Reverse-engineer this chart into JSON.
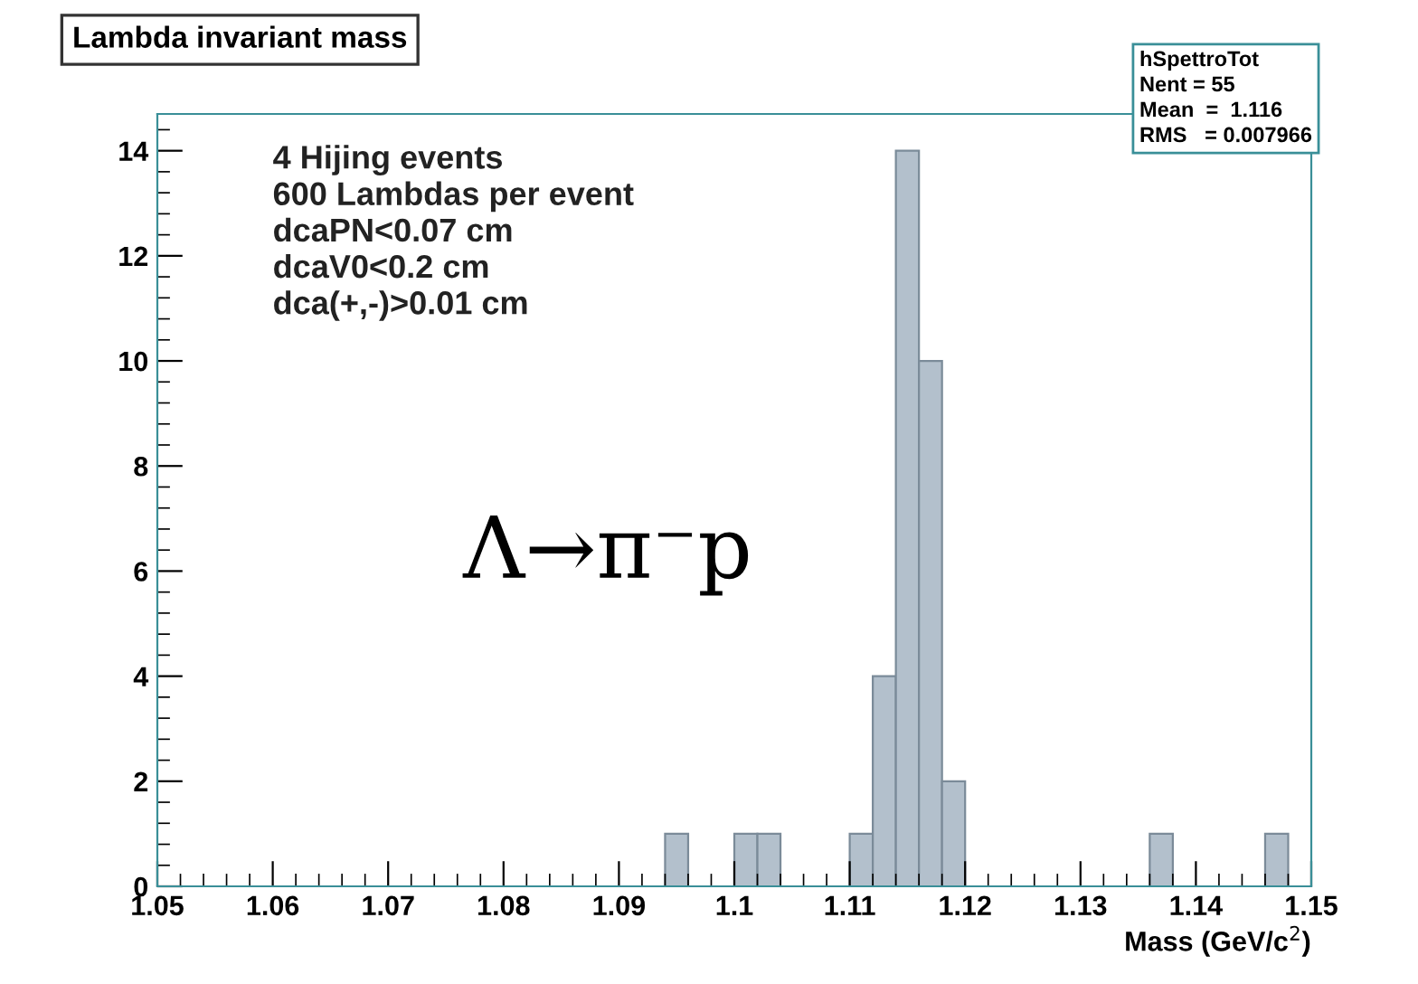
{
  "chart_data": {
    "type": "histogram",
    "title": "Lambda invariant mass",
    "xlabel": "Mass (GeV/c$^{2}$)",
    "bins": [
      1.094,
      1.096,
      1.098,
      1.1,
      1.102,
      1.104,
      1.106,
      1.108,
      1.11,
      1.112,
      1.114,
      1.116,
      1.118,
      1.12,
      1.122,
      1.124,
      1.126,
      1.128,
      1.13,
      1.132,
      1.134,
      1.136,
      1.138,
      1.14,
      1.142,
      1.144,
      1.146,
      1.148
    ],
    "values": [
      1,
      0,
      0,
      1,
      1,
      0,
      0,
      0,
      1,
      4,
      14,
      10,
      2,
      0,
      0,
      0,
      0,
      0,
      0,
      0,
      0,
      1,
      0,
      0,
      0,
      0,
      1
    ],
    "color": "#b3c0cc",
    "xlim": [
      1.05,
      1.15
    ],
    "xticks": [
      1.05,
      1.06,
      1.07,
      1.08,
      1.09,
      1.1,
      1.11,
      1.12,
      1.13,
      1.14,
      1.15
    ],
    "ylim": [
      0,
      14.7
    ],
    "yticks": [
      0,
      2,
      4,
      6,
      8,
      10,
      12,
      14
    ],
    "grid": false,
    "annotations": [
      "4 Hijing events\n600 Lambdas per event\ndcaPN<0.07 cm\ndcaV0<0.2 cm\ndca(+,-)>0.01 cm",
      "Λ→π⁻p",
      "hSpettroTot\nNent = 55\nMean  =  1.116\nRMS   = 0.007966"
    ]
  }
}
